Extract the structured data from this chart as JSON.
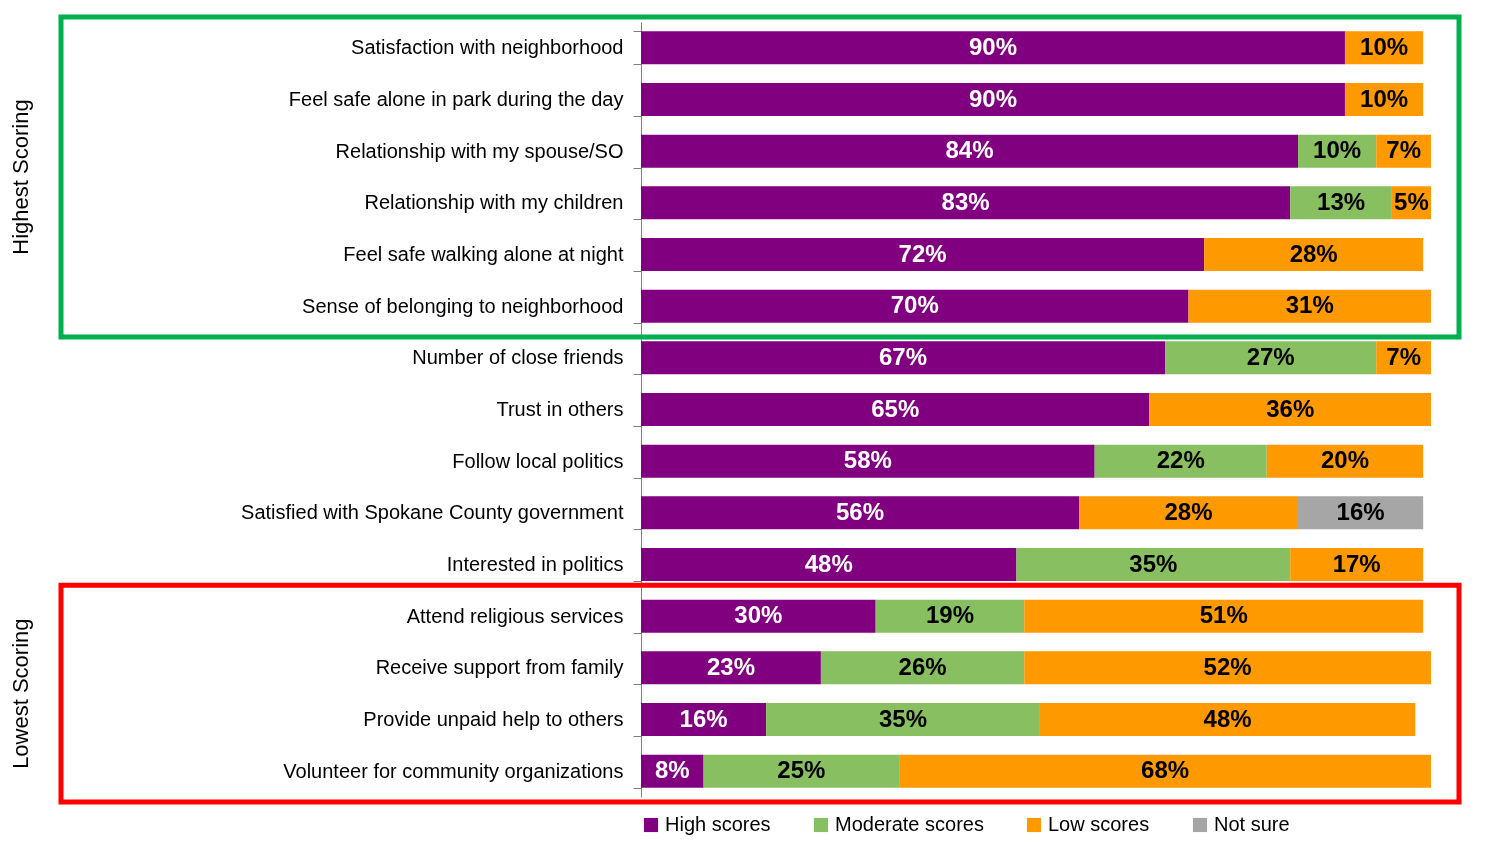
{
  "chart_data": {
    "type": "bar",
    "orientation": "horizontal",
    "stacked": true,
    "categories": [
      "Satisfaction with neighborhood",
      "Feel safe alone in park during the day",
      "Relationship with my spouse/SO",
      "Relationship with my children",
      "Feel safe walking alone at night",
      "Sense of belonging to neighborhood",
      "Number of close friends",
      "Trust in others",
      "Follow local politics",
      "Satisfied with Spokane County government",
      "Interested in politics",
      "Attend religious services",
      "Receive support from family",
      "Provide unpaid help to others",
      "Volunteer for community organizations"
    ],
    "series": [
      {
        "name": "High scores",
        "color": "#800080",
        "values": [
          90,
          90,
          84,
          83,
          72,
          70,
          67,
          65,
          58,
          56,
          48,
          30,
          23,
          16,
          8
        ],
        "value_labels": [
          "90%",
          "90%",
          "84%",
          "83%",
          "72%",
          "70%",
          "67%",
          "65%",
          "58%",
          "56%",
          "48%",
          "30%",
          "23%",
          "16%",
          "8%"
        ]
      },
      {
        "name": "Moderate scores",
        "color": "#88bf60",
        "values": [
          null,
          null,
          10,
          13,
          null,
          null,
          27,
          null,
          22,
          null,
          35,
          19,
          26,
          35,
          25
        ],
        "value_labels": [
          null,
          null,
          "10%",
          "13%",
          null,
          null,
          "27%",
          null,
          "22%",
          null,
          "35%",
          "19%",
          "26%",
          "35%",
          "25%"
        ]
      },
      {
        "name": "Low scores",
        "color": "#ff9900",
        "values": [
          10,
          10,
          7,
          5,
          28,
          31,
          7,
          36,
          20,
          28,
          17,
          51,
          52,
          48,
          68
        ],
        "value_labels": [
          "10%",
          "10%",
          "7%",
          "5%",
          "28%",
          "31%",
          "7%",
          "36%",
          "20%",
          "28%",
          "17%",
          "51%",
          "52%",
          "48%",
          "68%"
        ]
      },
      {
        "name": "Not sure",
        "color": "#a6a6a6",
        "values": [
          null,
          null,
          null,
          null,
          null,
          null,
          null,
          null,
          null,
          16,
          null,
          null,
          null,
          null,
          null
        ],
        "value_labels": [
          null,
          null,
          null,
          null,
          null,
          null,
          null,
          null,
          null,
          "16%",
          null,
          null,
          null,
          null,
          null
        ]
      }
    ],
    "annotations": [
      "Highest Scoring",
      "Lowest Scoring"
    ],
    "legend": "bottom",
    "tick_labels": "y"
  }
}
